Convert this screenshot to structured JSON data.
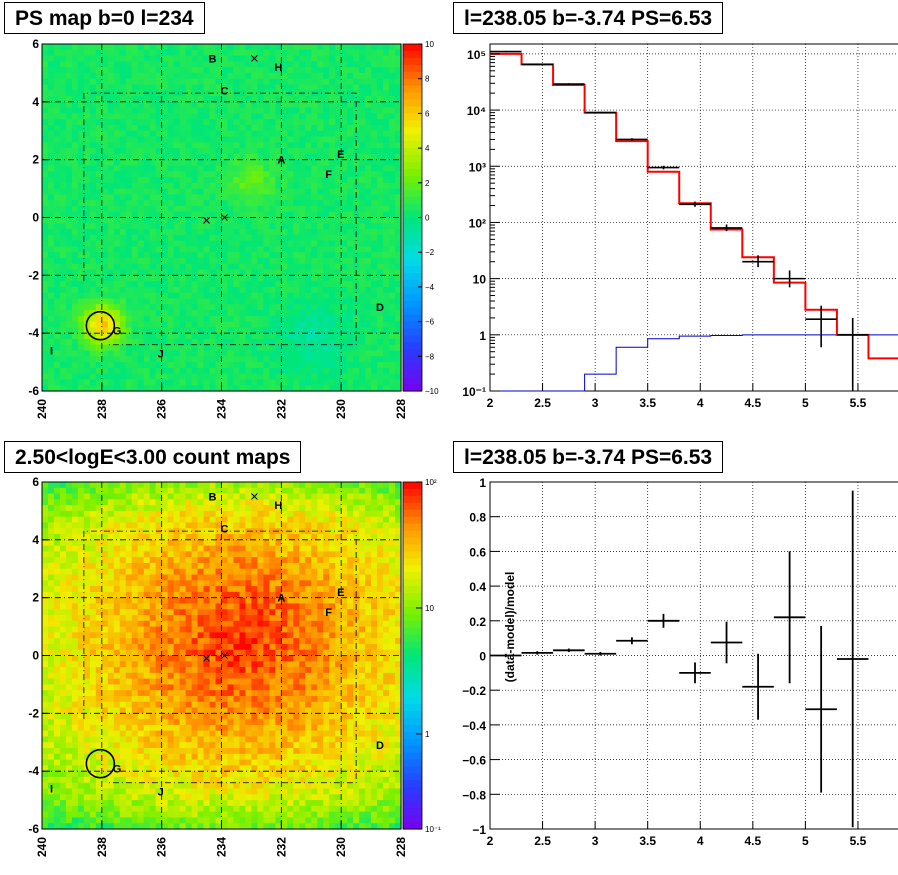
{
  "panels": {
    "tl_title": "PS map b=0 l=234",
    "tr_title": "l=238.05 b=-3.74 PS=6.53",
    "bl_title": "2.50<logE<3.00 count maps",
    "br_title": "l=238.05 b=-3.74 PS=6.53"
  },
  "map_axes": {
    "x_ticks": [
      "240",
      "238",
      "236",
      "234",
      "232",
      "230",
      "228"
    ],
    "y_ticks": [
      "6",
      "4",
      "2",
      "0",
      "-2",
      "-4",
      "-6"
    ]
  },
  "source_labels": [
    "A",
    "B",
    "C",
    "D",
    "E",
    "F",
    "G",
    "H",
    "I",
    "J"
  ],
  "palette_ps": {
    "ticks": [
      "10",
      "8",
      "6",
      "4",
      "2",
      "0",
      "−2",
      "−4",
      "−6",
      "−8",
      "−10"
    ]
  },
  "palette_counts": {
    "ticks": [
      "10²",
      "10",
      "1",
      "10⁻¹"
    ]
  },
  "spectrum_axes": {
    "x_ticks": [
      "2",
      "2.5",
      "3",
      "3.5",
      "4",
      "4.5",
      "5",
      "5.5"
    ],
    "y_ticks": [
      "10⁵",
      "10⁴",
      "10³",
      "10²",
      "10",
      "1",
      "10⁻¹"
    ]
  },
  "residual_axes": {
    "x_ticks": [
      "2",
      "2.5",
      "3",
      "3.5",
      "4",
      "4.5",
      "5",
      "5.5"
    ],
    "y_ticks": [
      "1",
      "0.8",
      "0.6",
      "0.4",
      "0.2",
      "0",
      "−0.2",
      "−0.4",
      "−0.6",
      "−0.8",
      "−1"
    ],
    "ylabel": "(data-model)/model"
  },
  "colors": {
    "model": "#ff0000",
    "data": "#000000",
    "background": "#0000cc"
  },
  "chart_data": [
    {
      "type": "heatmap",
      "title": "PS map b=0 l=234",
      "xlabel": "",
      "ylabel": "",
      "xlim": [
        240,
        228
      ],
      "ylim": [
        -6,
        6
      ],
      "zlim": [
        -10,
        10
      ],
      "sources": [
        {
          "label": "A",
          "l": 232.0,
          "b": 2.0
        },
        {
          "label": "B",
          "l": 234.3,
          "b": 5.5
        },
        {
          "label": "C",
          "l": 233.9,
          "b": 4.4
        },
        {
          "label": "D",
          "l": 228.7,
          "b": -3.1
        },
        {
          "label": "E",
          "l": 230.0,
          "b": 2.2
        },
        {
          "label": "F",
          "l": 230.4,
          "b": 1.5
        },
        {
          "label": "G",
          "l": 237.5,
          "b": -3.9
        },
        {
          "label": "H",
          "l": 232.1,
          "b": 5.2
        },
        {
          "label": "I",
          "l": 239.6,
          "b": -4.6
        },
        {
          "label": "J",
          "l": 236.0,
          "b": -4.7
        }
      ],
      "crosses": [
        {
          "l": 232.9,
          "b": 5.5
        },
        {
          "l": 234.5,
          "b": -0.1
        },
        {
          "l": 233.9,
          "b": 0.0
        }
      ],
      "circle": {
        "l": 238.05,
        "b": -3.74
      }
    },
    {
      "type": "line",
      "title": "l=238.05 b=-3.74 PS=6.53",
      "xlim": [
        2,
        5.9
      ],
      "ylim": [
        0.1,
        150000
      ],
      "yscale": "log",
      "series": [
        {
          "bins": [
            2,
            2.3,
            2.6,
            2.9,
            3.2,
            3.5,
            3.8,
            4.1,
            4.4,
            4.7,
            5.0,
            5.3,
            5.6,
            5.9
          ],
          "values": [
            100000,
            65000,
            28000,
            9000,
            2800,
            800,
            220,
            75,
            24,
            8.5,
            2.8,
            1.0,
            0.38
          ]
        },
        {
          "bins": [
            2,
            2.3,
            2.6,
            2.9,
            3.2,
            3.5,
            3.8,
            4.1,
            4.4,
            4.7,
            5.0,
            5.3,
            5.6,
            5.9
          ],
          "values": [
            0.01,
            0.01,
            0.01,
            0.2,
            0.6,
            0.85,
            0.95,
            0.97,
            1.0,
            1.0,
            1.0,
            1.0,
            1.0
          ]
        }
      ],
      "points": [
        {
          "x": 2.15,
          "y": 110000,
          "xerr": 0.15,
          "ylo": 107000,
          "yhi": 113000
        },
        {
          "x": 2.45,
          "y": 65000,
          "xerr": 0.15,
          "ylo": 63000,
          "yhi": 67000
        },
        {
          "x": 2.75,
          "y": 29000,
          "xerr": 0.15,
          "ylo": 28000,
          "yhi": 30000
        },
        {
          "x": 3.05,
          "y": 9000,
          "xerr": 0.15,
          "ylo": 8700,
          "yhi": 9300
        },
        {
          "x": 3.35,
          "y": 3000,
          "xerr": 0.15,
          "ylo": 2850,
          "yhi": 3150
        },
        {
          "x": 3.65,
          "y": 950,
          "xerr": 0.15,
          "ylo": 880,
          "yhi": 1020
        },
        {
          "x": 3.95,
          "y": 210,
          "xerr": 0.15,
          "ylo": 190,
          "yhi": 235
        },
        {
          "x": 4.25,
          "y": 80,
          "xerr": 0.15,
          "ylo": 70,
          "yhi": 92
        },
        {
          "x": 4.55,
          "y": 20,
          "xerr": 0.15,
          "ylo": 16,
          "yhi": 26
        },
        {
          "x": 4.85,
          "y": 10,
          "xerr": 0.15,
          "ylo": 7,
          "yhi": 14
        },
        {
          "x": 5.15,
          "y": 1.9,
          "xerr": 0.15,
          "ylo": 0.6,
          "yhi": 3.3
        },
        {
          "x": 5.45,
          "y": 1.0,
          "xerr": 0.15,
          "ylo": 0.1,
          "yhi": 2.0
        }
      ]
    },
    {
      "type": "heatmap",
      "title": "2.50<logE<3.00 count maps",
      "xlabel": "",
      "ylabel": "",
      "xlim": [
        240,
        228
      ],
      "ylim": [
        -6,
        6
      ],
      "zlim": [
        0.1,
        100
      ],
      "zscale": "log"
    },
    {
      "type": "scatter",
      "title": "l=238.05 b=-3.74 PS=6.53",
      "xlabel": "",
      "ylabel": "(data-model)/model",
      "xlim": [
        2,
        5.9
      ],
      "ylim": [
        -1,
        1
      ],
      "points": [
        {
          "x": 2.15,
          "y": 0.0,
          "xerr": 0.15,
          "yerr": 0.01
        },
        {
          "x": 2.45,
          "y": 0.015,
          "xerr": 0.15,
          "yerr": 0.01
        },
        {
          "x": 2.75,
          "y": 0.03,
          "xerr": 0.15,
          "yerr": 0.01
        },
        {
          "x": 3.05,
          "y": 0.01,
          "xerr": 0.15,
          "yerr": 0.01
        },
        {
          "x": 3.35,
          "y": 0.085,
          "xerr": 0.15,
          "yerr": 0.02
        },
        {
          "x": 3.65,
          "y": 0.2,
          "xerr": 0.15,
          "yerr": 0.04
        },
        {
          "x": 3.95,
          "y": -0.1,
          "xerr": 0.15,
          "yerr": 0.06
        },
        {
          "x": 4.25,
          "y": 0.075,
          "xerr": 0.15,
          "yerr": 0.12
        },
        {
          "x": 4.55,
          "y": -0.18,
          "xerr": 0.15,
          "yerr": 0.19
        },
        {
          "x": 4.85,
          "y": 0.22,
          "xerr": 0.15,
          "yerr": 0.38
        },
        {
          "x": 5.15,
          "y": -0.31,
          "xerr": 0.15,
          "yerr": 0.48
        },
        {
          "x": 5.45,
          "y": -0.02,
          "xerr": 0.15,
          "yerr": 0.97
        }
      ]
    }
  ]
}
